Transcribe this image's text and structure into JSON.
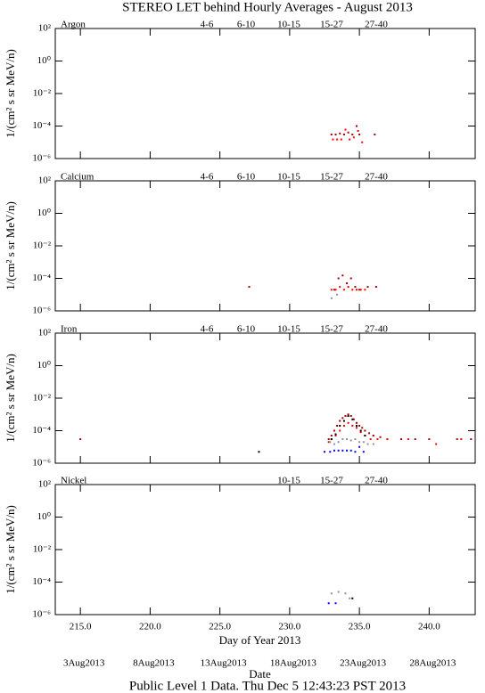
{
  "title": "STEREO LET behind Hourly Averages - August 2013",
  "footer": "Public Level 1 Data. Thu Dec  5 12:43:23 PST 2013",
  "chart_data": [
    {
      "type": "scatter",
      "panel": "Argon",
      "ylabel": "1/(cm² s sr MeV/n)",
      "log_y": true,
      "xlim": [
        213.2,
        243.3
      ],
      "xticks": [
        215,
        220,
        225,
        230,
        235,
        240
      ],
      "ylim": [
        1e-06,
        100
      ],
      "yticks": [
        {
          "value": 100,
          "label": "10²"
        },
        {
          "value": 1,
          "label": "10⁰"
        },
        {
          "value": 0.01,
          "label": "10⁻²"
        },
        {
          "value": 0.0001,
          "label": "10⁻⁴"
        },
        {
          "value": 1e-06,
          "label": "10⁻⁶"
        }
      ],
      "series": [
        {
          "name": "4-6",
          "color": "#a00000",
          "x": [
            233.0,
            233.3,
            233.6,
            233.9,
            234.2,
            234.5,
            234.8,
            235.0,
            236.1
          ],
          "values": [
            3e-05,
            3e-05,
            3.5e-05,
            3e-05,
            4e-05,
            3e-05,
            0.0001,
            3e-05,
            3e-05
          ]
        },
        {
          "name": "6-10",
          "color": "#ff0000",
          "x": [
            233.1,
            233.4,
            233.7,
            234.0,
            234.3,
            234.6,
            234.9,
            235.2
          ],
          "values": [
            1.5e-05,
            1.5e-05,
            1.5e-05,
            6e-05,
            1.5e-05,
            2e-05,
            5e-05,
            1e-05
          ]
        },
        {
          "name": "10-15",
          "color": "#909090",
          "x": [],
          "values": []
        },
        {
          "name": "15-27",
          "color": "#0000ff",
          "x": [],
          "values": []
        },
        {
          "name": "27-40",
          "color": "#000000",
          "x": [],
          "values": []
        }
      ]
    },
    {
      "type": "scatter",
      "panel": "Calcium",
      "ylabel": "1/(cm² s sr MeV/n)",
      "log_y": true,
      "xlim": [
        213.2,
        243.3
      ],
      "xticks": [
        215,
        220,
        225,
        230,
        235,
        240
      ],
      "ylim": [
        1e-06,
        100
      ],
      "yticks": [
        {
          "value": 100,
          "label": "10²"
        },
        {
          "value": 1,
          "label": "10⁰"
        },
        {
          "value": 0.01,
          "label": "10⁻²"
        },
        {
          "value": 0.0001,
          "label": "10⁻⁴"
        },
        {
          "value": 1e-06,
          "label": "10⁻⁶"
        }
      ],
      "series": [
        {
          "name": "4-6",
          "color": "#a00000",
          "x": [
            227.1,
            233.2,
            233.5,
            233.8,
            234.1,
            234.4,
            234.7,
            235.0,
            235.6,
            236.2
          ],
          "values": [
            3e-05,
            2e-05,
            0.0001,
            0.00015,
            5e-05,
            0.0001,
            3e-05,
            2e-05,
            3e-05,
            3e-05
          ]
        },
        {
          "name": "6-10",
          "color": "#ff0000",
          "x": [
            233.0,
            233.3,
            233.6,
            233.9,
            234.2,
            234.5,
            234.8,
            235.1,
            235.4
          ],
          "values": [
            2e-05,
            2e-05,
            3e-05,
            2e-05,
            3e-05,
            2e-05,
            2e-05,
            2e-05,
            2e-05
          ]
        },
        {
          "name": "10-15",
          "color": "#909090",
          "x": [
            233.0,
            233.4
          ],
          "values": [
            6e-06,
            1e-05
          ]
        },
        {
          "name": "15-27",
          "color": "#0000ff",
          "x": [],
          "values": []
        },
        {
          "name": "27-40",
          "color": "#000000",
          "x": [],
          "values": []
        }
      ]
    },
    {
      "type": "scatter",
      "panel": "Iron",
      "ylabel": "1/(cm² s sr MeV/n)",
      "log_y": true,
      "xlim": [
        213.2,
        243.3
      ],
      "xticks": [
        215,
        220,
        225,
        230,
        235,
        240
      ],
      "ylim": [
        1e-06,
        100
      ],
      "yticks": [
        {
          "value": 100,
          "label": "10²"
        },
        {
          "value": 1,
          "label": "10⁰"
        },
        {
          "value": 0.01,
          "label": "10⁻²"
        },
        {
          "value": 0.0001,
          "label": "10⁻⁴"
        },
        {
          "value": 1e-06,
          "label": "10⁻⁶"
        }
      ],
      "series": [
        {
          "name": "4-6",
          "color": "#a00000",
          "x": [
            215.0,
            232.8,
            233.0,
            233.2,
            233.4,
            233.6,
            233.8,
            234.0,
            234.2,
            234.4,
            234.6,
            234.8,
            235.0,
            235.2,
            235.4,
            235.7,
            236.0,
            236.5,
            237.0,
            238.0,
            239.0,
            240.0,
            242.0,
            243.0
          ],
          "values": [
            3e-05,
            3e-05,
            5e-05,
            0.0001,
            0.0002,
            0.0004,
            0.0006,
            0.0008,
            0.001,
            0.0008,
            0.0005,
            0.0003,
            0.0002,
            0.00015,
            0.0001,
            7e-05,
            5e-05,
            4e-05,
            3e-05,
            3e-05,
            3e-05,
            3e-05,
            3e-05,
            3e-05
          ]
        },
        {
          "name": "6-10",
          "color": "#ff0000",
          "x": [
            232.8,
            233.0,
            233.3,
            233.6,
            233.9,
            234.2,
            234.5,
            234.8,
            235.1,
            235.4,
            235.8,
            236.3,
            237.0,
            238.5,
            240.5,
            242.3
          ],
          "values": [
            2e-05,
            3e-05,
            5e-05,
            0.0001,
            0.0002,
            0.0003,
            0.0002,
            0.00015,
            8e-05,
            5e-05,
            3e-05,
            3e-05,
            3e-05,
            3e-05,
            1.5e-05,
            3e-05
          ]
        },
        {
          "name": "10-15",
          "color": "#909090",
          "x": [
            232.9,
            233.2,
            233.5,
            233.8,
            234.1,
            234.4,
            234.7,
            235.0,
            235.3,
            235.6,
            236.0
          ],
          "values": [
            2e-05,
            1.5e-05,
            2e-05,
            3e-05,
            3e-05,
            2.5e-05,
            3e-05,
            2e-05,
            2e-05,
            1.5e-05,
            1.5e-05
          ]
        },
        {
          "name": "15-27",
          "color": "#0000ff",
          "x": [
            232.5,
            232.9,
            233.2,
            233.5,
            233.8,
            234.1,
            234.4,
            234.7,
            235.0,
            235.3
          ],
          "values": [
            5e-06,
            5e-06,
            6e-06,
            6e-06,
            6e-06,
            6e-06,
            6e-06,
            5e-06,
            1e-05,
            5e-06
          ]
        },
        {
          "name": "27-40",
          "color": "#000000",
          "x": [
            227.8,
            233.0,
            233.3,
            233.6,
            233.9,
            234.2,
            234.5,
            234.8,
            235.1,
            235.4
          ],
          "values": [
            5e-06,
            3e-05,
            6e-05,
            0.0002,
            0.0004,
            0.0008,
            0.0005,
            0.0002,
            0.0001,
            5e-05
          ]
        }
      ]
    },
    {
      "type": "scatter",
      "panel": "Nickel",
      "ylabel": "1/(cm² s sr MeV/n)",
      "log_y": true,
      "xlim": [
        213.2,
        243.3
      ],
      "xticks": [
        {
          "value": 215,
          "label": "215.0"
        },
        {
          "value": 220,
          "label": "220.0"
        },
        {
          "value": 225,
          "label": "225.0"
        },
        {
          "value": 230,
          "label": "230.0"
        },
        {
          "value": 235,
          "label": "235.0"
        },
        {
          "value": 240,
          "label": "240.0"
        }
      ],
      "xlabel": "Day of Year 2013",
      "date_label": "Date",
      "date_ticks": [
        {
          "value": 215,
          "label": "3Aug2013"
        },
        {
          "value": 220,
          "label": "8Aug2013"
        },
        {
          "value": 225,
          "label": "13Aug2013"
        },
        {
          "value": 230,
          "label": "18Aug2013"
        },
        {
          "value": 235,
          "label": "23Aug2013"
        },
        {
          "value": 240,
          "label": "28Aug2013"
        }
      ],
      "ylim": [
        1e-06,
        100
      ],
      "yticks": [
        {
          "value": 100,
          "label": "10²"
        },
        {
          "value": 1,
          "label": "10⁰"
        },
        {
          "value": 0.01,
          "label": "10⁻²"
        },
        {
          "value": 0.0001,
          "label": "10⁻⁴"
        },
        {
          "value": 1e-06,
          "label": "10⁻⁶"
        }
      ],
      "series": [
        {
          "name": "10-15",
          "color": "#909090",
          "x": [
            233.0,
            233.5,
            234.0,
            234.3
          ],
          "values": [
            2e-05,
            2.5e-05,
            2e-05,
            1e-05
          ]
        },
        {
          "name": "15-27",
          "color": "#0000ff",
          "x": [
            232.8,
            233.3
          ],
          "values": [
            5e-06,
            5e-06
          ]
        },
        {
          "name": "27-40",
          "color": "#000000",
          "x": [
            234.5
          ],
          "values": [
            1e-05
          ]
        }
      ]
    }
  ]
}
